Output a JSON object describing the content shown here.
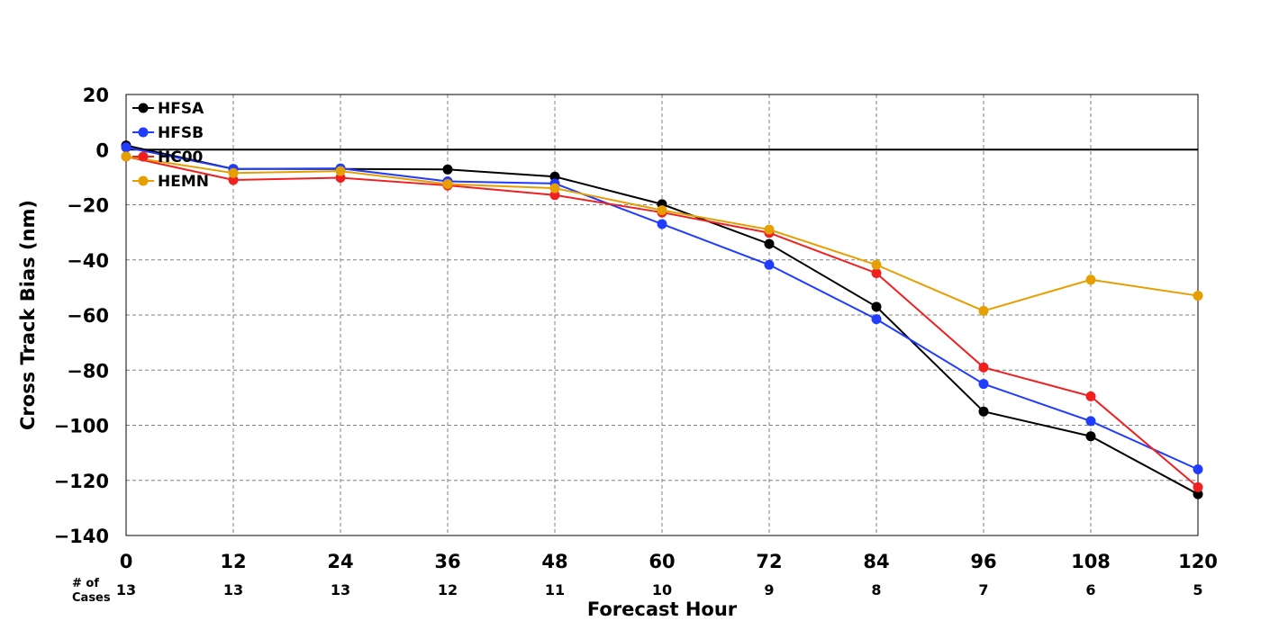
{
  "chart_data": {
    "type": "line",
    "xlabel": "Forecast Hour",
    "ylabel": "Cross Track Bias (nm)",
    "xlim": [
      0,
      120
    ],
    "ylim": [
      -140,
      20
    ],
    "x": [
      0,
      12,
      24,
      36,
      48,
      60,
      72,
      84,
      96,
      108,
      120
    ],
    "x_ticks": [
      "0",
      "12",
      "24",
      "36",
      "48",
      "60",
      "72",
      "84",
      "96",
      "108",
      "120"
    ],
    "y_ticks": [
      20,
      0,
      -20,
      -40,
      -60,
      -80,
      -100,
      -120,
      -140
    ],
    "y_tick_labels": [
      "20",
      "0",
      "−20",
      "−40",
      "−60",
      "−80",
      "−100",
      "−120",
      "−140"
    ],
    "grid": true,
    "legend_position": "top-left",
    "cases_caption": "# of\nCases",
    "cases": [
      "13",
      "13",
      "13",
      "12",
      "11",
      "10",
      "9",
      "8",
      "7",
      "6",
      "5"
    ],
    "series": [
      {
        "name": "HFSA",
        "color": "#000000",
        "values": [
          1.5,
          -7,
          -7,
          -7.2,
          -9.8,
          -19.8,
          -34.2,
          -57,
          -95,
          -104,
          -125
        ]
      },
      {
        "name": "HFSB",
        "color": "#1f3cff",
        "values": [
          0.8,
          -7,
          -6.8,
          -11.5,
          -12.3,
          -27,
          -41.8,
          -61.5,
          -85,
          -98.5,
          -116
        ]
      },
      {
        "name": "HC00",
        "color": "#f02020",
        "values": [
          -2.5,
          -11,
          -10.2,
          -13,
          -16.5,
          -22.8,
          -30.2,
          -44.8,
          -79,
          -89.5,
          -122.5
        ]
      },
      {
        "name": "HEMN",
        "color": "#e69f00",
        "values": [
          -2.5,
          -8.5,
          -7.8,
          -12.5,
          -14,
          -22,
          -29,
          -41.8,
          -58.5,
          -47.2,
          -53
        ]
      }
    ]
  }
}
